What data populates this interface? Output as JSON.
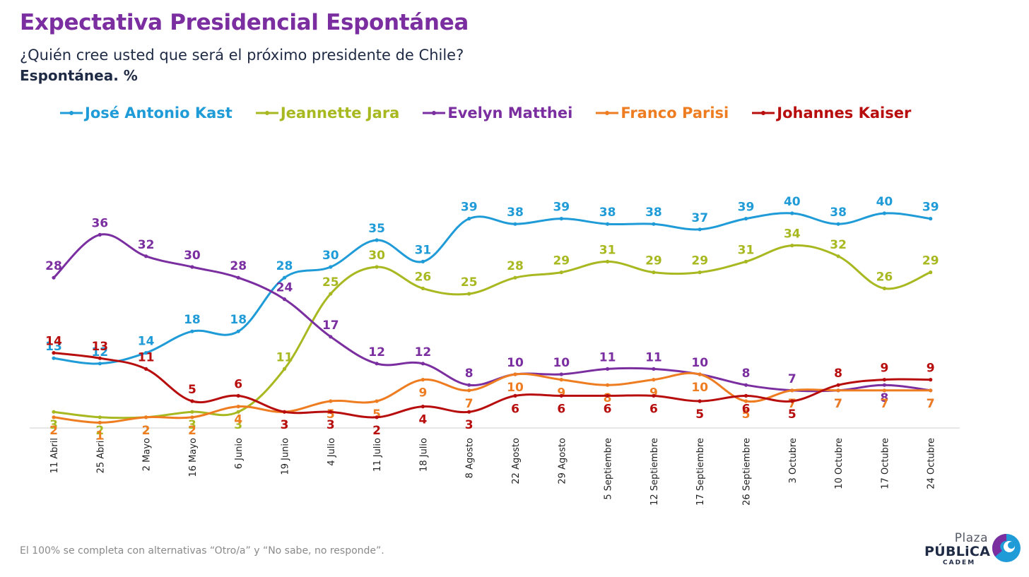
{
  "header": {
    "title": "Expectativa Presidencial Espontánea",
    "question": "¿Quién cree usted que será el próximo presidente de Chile?",
    "subtitle": "Espontánea. %"
  },
  "footer": {
    "note": "El 100% se completa con alternativas “Otro/a” y “No sabe, no responde”."
  },
  "logo": {
    "line1": "Plaza",
    "line2": "PÚBLiCA",
    "line3": "CADEM"
  },
  "chart_data": {
    "type": "line",
    "title": "Expectativa Presidencial Espontánea",
    "subtitle": "Espontánea. %",
    "legend_position": "top",
    "grid": false,
    "ylim": [
      0,
      45
    ],
    "x": [
      "11 Abril",
      "25 Abril",
      "2 Mayo",
      "16 Mayo",
      "6 Junio",
      "19 Junio",
      "4 Julio",
      "11 Julio",
      "18 Julio",
      "8 Agosto",
      "22 Agosto",
      "29 Agosto",
      "5 Septiembre",
      "12 Septiembre",
      "17 Septiembre",
      "26 Septiembre",
      "3 Octubre",
      "10 Octubre",
      "17 Octubre",
      "24 Octubre"
    ],
    "series": [
      {
        "name": "José Antonio Kast",
        "color": "#1f9bd7",
        "values": [
          13,
          12,
          14,
          18,
          18,
          28,
          30,
          35,
          31,
          39,
          38,
          39,
          38,
          38,
          37,
          39,
          40,
          38,
          40,
          39
        ]
      },
      {
        "name": "Jeannette Jara",
        "color": "#a8b820",
        "values": [
          3,
          2,
          2,
          3,
          3,
          11,
          25,
          30,
          26,
          25,
          28,
          29,
          31,
          29,
          29,
          31,
          34,
          32,
          26,
          29
        ]
      },
      {
        "name": "Evelyn Matthei",
        "color": "#7a2ea0",
        "values": [
          28,
          36,
          32,
          30,
          28,
          24,
          17,
          12,
          12,
          8,
          10,
          10,
          11,
          11,
          10,
          8,
          7,
          7,
          8,
          7
        ]
      },
      {
        "name": "Franco Parisi",
        "color": "#ee7d22",
        "values": [
          2,
          1,
          2,
          2,
          4,
          3,
          5,
          5,
          9,
          7,
          10,
          9,
          8,
          9,
          10,
          5,
          7,
          7,
          7,
          7
        ]
      },
      {
        "name": "Johannes Kaiser",
        "color": "#b80d0d",
        "values": [
          14,
          13,
          11,
          5,
          6,
          3,
          3,
          2,
          4,
          3,
          6,
          6,
          6,
          6,
          5,
          6,
          5,
          8,
          9,
          9
        ]
      }
    ]
  }
}
